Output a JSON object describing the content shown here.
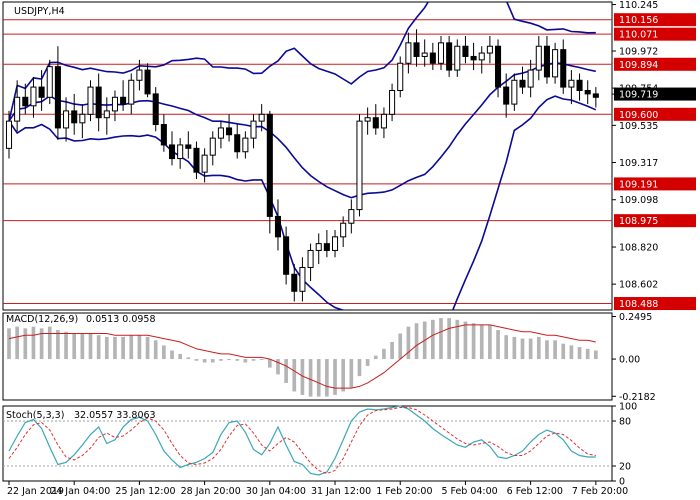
{
  "chart_data": {
    "type": "candlestick",
    "symbol_label": "USDJPY,H4",
    "colors": {
      "level_line": "#c81e1e",
      "level_tag": "#d40000",
      "bands": "#0a0a96",
      "macd_hist": "#b4b4b4",
      "macd_signal": "#c81e1e",
      "stoch_main": "#3aa8b8",
      "stoch_signal": "#e03030",
      "current_tag": "#000000"
    },
    "price_axis": {
      "range": [
        108.45,
        110.26
      ],
      "ticks": [
        "110.245",
        "109.972",
        "109.754",
        "109.535",
        "109.317",
        "109.098",
        "108.820",
        "108.602"
      ],
      "current_price": "109.719"
    },
    "levels": [
      "110.156",
      "110.071",
      "109.894",
      "109.600",
      "109.191",
      "108.975",
      "108.488"
    ],
    "x_axis": {
      "labels": [
        "22 Jan 2019",
        "24 Jan 04:00",
        "25 Jan 12:00",
        "28 Jan 20:00",
        "30 Jan 04:00",
        "31 Jan 12:00",
        "1 Feb 20:00",
        "5 Feb 04:00",
        "6 Feb 12:00",
        "7 Feb 20:00"
      ],
      "label_bar_index": [
        0,
        8,
        16,
        24,
        32,
        40,
        48,
        56,
        64,
        72
      ]
    },
    "candles": [
      {
        "o": 109.4,
        "h": 109.62,
        "l": 109.34,
        "c": 109.56
      },
      {
        "o": 109.56,
        "h": 109.8,
        "l": 109.5,
        "c": 109.7
      },
      {
        "o": 109.7,
        "h": 109.78,
        "l": 109.6,
        "c": 109.65
      },
      {
        "o": 109.65,
        "h": 109.82,
        "l": 109.58,
        "c": 109.76
      },
      {
        "o": 109.76,
        "h": 109.86,
        "l": 109.62,
        "c": 109.7
      },
      {
        "o": 109.7,
        "h": 109.92,
        "l": 109.66,
        "c": 109.88
      },
      {
        "o": 109.88,
        "h": 110.0,
        "l": 109.45,
        "c": 109.52
      },
      {
        "o": 109.52,
        "h": 109.7,
        "l": 109.44,
        "c": 109.62
      },
      {
        "o": 109.62,
        "h": 109.72,
        "l": 109.48,
        "c": 109.55
      },
      {
        "o": 109.55,
        "h": 109.66,
        "l": 109.46,
        "c": 109.6
      },
      {
        "o": 109.6,
        "h": 109.8,
        "l": 109.56,
        "c": 109.76
      },
      {
        "o": 109.76,
        "h": 109.84,
        "l": 109.5,
        "c": 109.58
      },
      {
        "o": 109.58,
        "h": 109.7,
        "l": 109.48,
        "c": 109.62
      },
      {
        "o": 109.62,
        "h": 109.74,
        "l": 109.56,
        "c": 109.7
      },
      {
        "o": 109.7,
        "h": 109.8,
        "l": 109.62,
        "c": 109.66
      },
      {
        "o": 109.66,
        "h": 109.84,
        "l": 109.6,
        "c": 109.8
      },
      {
        "o": 109.8,
        "h": 109.92,
        "l": 109.74,
        "c": 109.86
      },
      {
        "o": 109.86,
        "h": 109.9,
        "l": 109.7,
        "c": 109.72
      },
      {
        "o": 109.72,
        "h": 109.76,
        "l": 109.5,
        "c": 109.54
      },
      {
        "o": 109.54,
        "h": 109.6,
        "l": 109.38,
        "c": 109.42
      },
      {
        "o": 109.42,
        "h": 109.5,
        "l": 109.3,
        "c": 109.34
      },
      {
        "o": 109.34,
        "h": 109.46,
        "l": 109.28,
        "c": 109.42
      },
      {
        "o": 109.42,
        "h": 109.5,
        "l": 109.34,
        "c": 109.4
      },
      {
        "o": 109.4,
        "h": 109.44,
        "l": 109.22,
        "c": 109.26
      },
      {
        "o": 109.26,
        "h": 109.4,
        "l": 109.2,
        "c": 109.36
      },
      {
        "o": 109.36,
        "h": 109.5,
        "l": 109.3,
        "c": 109.46
      },
      {
        "o": 109.46,
        "h": 109.56,
        "l": 109.4,
        "c": 109.52
      },
      {
        "o": 109.52,
        "h": 109.6,
        "l": 109.44,
        "c": 109.48
      },
      {
        "o": 109.48,
        "h": 109.54,
        "l": 109.34,
        "c": 109.38
      },
      {
        "o": 109.38,
        "h": 109.5,
        "l": 109.34,
        "c": 109.46
      },
      {
        "o": 109.46,
        "h": 109.6,
        "l": 109.4,
        "c": 109.56
      },
      {
        "o": 109.56,
        "h": 109.66,
        "l": 109.5,
        "c": 109.6
      },
      {
        "o": 109.6,
        "h": 109.62,
        "l": 108.9,
        "c": 109.0
      },
      {
        "o": 109.0,
        "h": 109.1,
        "l": 108.8,
        "c": 108.88
      },
      {
        "o": 108.88,
        "h": 108.94,
        "l": 108.6,
        "c": 108.66
      },
      {
        "o": 108.66,
        "h": 108.72,
        "l": 108.5,
        "c": 108.56
      },
      {
        "o": 108.56,
        "h": 108.76,
        "l": 108.5,
        "c": 108.7
      },
      {
        "o": 108.7,
        "h": 108.84,
        "l": 108.62,
        "c": 108.8
      },
      {
        "o": 108.8,
        "h": 108.9,
        "l": 108.72,
        "c": 108.84
      },
      {
        "o": 108.84,
        "h": 108.92,
        "l": 108.76,
        "c": 108.8
      },
      {
        "o": 108.8,
        "h": 108.92,
        "l": 108.76,
        "c": 108.88
      },
      {
        "o": 108.88,
        "h": 109.0,
        "l": 108.82,
        "c": 108.96
      },
      {
        "o": 108.96,
        "h": 109.1,
        "l": 108.9,
        "c": 109.04
      },
      {
        "o": 109.04,
        "h": 109.6,
        "l": 109.0,
        "c": 109.56
      },
      {
        "o": 109.56,
        "h": 109.64,
        "l": 109.48,
        "c": 109.58
      },
      {
        "o": 109.58,
        "h": 109.66,
        "l": 109.48,
        "c": 109.52
      },
      {
        "o": 109.52,
        "h": 109.64,
        "l": 109.46,
        "c": 109.6
      },
      {
        "o": 109.6,
        "h": 109.78,
        "l": 109.56,
        "c": 109.74
      },
      {
        "o": 109.74,
        "h": 109.94,
        "l": 109.7,
        "c": 109.9
      },
      {
        "o": 109.9,
        "h": 110.08,
        "l": 109.84,
        "c": 110.02
      },
      {
        "o": 110.02,
        "h": 110.1,
        "l": 109.88,
        "c": 109.94
      },
      {
        "o": 109.94,
        "h": 110.04,
        "l": 109.88,
        "c": 109.96
      },
      {
        "o": 109.96,
        "h": 110.02,
        "l": 109.86,
        "c": 109.9
      },
      {
        "o": 109.9,
        "h": 110.06,
        "l": 109.86,
        "c": 110.02
      },
      {
        "o": 110.02,
        "h": 110.06,
        "l": 109.82,
        "c": 109.86
      },
      {
        "o": 109.86,
        "h": 110.04,
        "l": 109.82,
        "c": 110.0
      },
      {
        "o": 110.0,
        "h": 110.06,
        "l": 109.9,
        "c": 109.94
      },
      {
        "o": 109.94,
        "h": 110.02,
        "l": 109.86,
        "c": 109.92
      },
      {
        "o": 109.92,
        "h": 110.0,
        "l": 109.84,
        "c": 109.96
      },
      {
        "o": 109.96,
        "h": 110.06,
        "l": 109.9,
        "c": 110.0
      },
      {
        "o": 110.0,
        "h": 110.04,
        "l": 109.7,
        "c": 109.76
      },
      {
        "o": 109.76,
        "h": 109.84,
        "l": 109.58,
        "c": 109.66
      },
      {
        "o": 109.66,
        "h": 109.84,
        "l": 109.62,
        "c": 109.8
      },
      {
        "o": 109.8,
        "h": 109.88,
        "l": 109.72,
        "c": 109.76
      },
      {
        "o": 109.76,
        "h": 109.92,
        "l": 109.7,
        "c": 109.86
      },
      {
        "o": 109.86,
        "h": 110.06,
        "l": 109.8,
        "c": 110.0
      },
      {
        "o": 110.0,
        "h": 110.06,
        "l": 109.78,
        "c": 109.82
      },
      {
        "o": 109.82,
        "h": 110.02,
        "l": 109.78,
        "c": 109.98
      },
      {
        "o": 109.98,
        "h": 110.04,
        "l": 109.72,
        "c": 109.76
      },
      {
        "o": 109.76,
        "h": 109.86,
        "l": 109.66,
        "c": 109.8
      },
      {
        "o": 109.8,
        "h": 109.84,
        "l": 109.68,
        "c": 109.74
      },
      {
        "o": 109.74,
        "h": 109.8,
        "l": 109.66,
        "c": 109.72
      },
      {
        "o": 109.72,
        "h": 109.76,
        "l": 109.64,
        "c": 109.7
      }
    ],
    "macd": {
      "label": "MACD(12,26,9)",
      "values": [
        "0.0513",
        "0.0958"
      ],
      "axis_range": [
        -0.24,
        0.27
      ],
      "ticks": [
        "0.2495",
        "0.00",
        "-0.2182"
      ],
      "histogram": [
        0.18,
        0.19,
        0.18,
        0.19,
        0.18,
        0.19,
        0.17,
        0.16,
        0.15,
        0.15,
        0.15,
        0.14,
        0.13,
        0.13,
        0.13,
        0.14,
        0.14,
        0.13,
        0.11,
        0.08,
        0.05,
        0.03,
        0.01,
        -0.01,
        -0.02,
        -0.02,
        -0.01,
        0.0,
        -0.01,
        -0.02,
        -0.01,
        0.0,
        -0.05,
        -0.09,
        -0.14,
        -0.19,
        -0.21,
        -0.22,
        -0.22,
        -0.22,
        -0.21,
        -0.19,
        -0.17,
        -0.1,
        -0.04,
        0.02,
        0.06,
        0.1,
        0.15,
        0.19,
        0.21,
        0.22,
        0.23,
        0.24,
        0.24,
        0.23,
        0.22,
        0.21,
        0.2,
        0.2,
        0.17,
        0.14,
        0.13,
        0.12,
        0.12,
        0.13,
        0.11,
        0.11,
        0.09,
        0.08,
        0.07,
        0.06,
        0.05
      ],
      "signal": [
        0.12,
        0.13,
        0.14,
        0.14,
        0.15,
        0.15,
        0.15,
        0.15,
        0.15,
        0.15,
        0.15,
        0.15,
        0.15,
        0.14,
        0.14,
        0.14,
        0.14,
        0.14,
        0.13,
        0.12,
        0.11,
        0.1,
        0.08,
        0.06,
        0.05,
        0.04,
        0.03,
        0.03,
        0.02,
        0.01,
        0.01,
        0.01,
        0.0,
        -0.02,
        -0.04,
        -0.07,
        -0.1,
        -0.12,
        -0.14,
        -0.16,
        -0.17,
        -0.17,
        -0.17,
        -0.16,
        -0.14,
        -0.11,
        -0.08,
        -0.04,
        0.0,
        0.04,
        0.08,
        0.11,
        0.14,
        0.16,
        0.18,
        0.19,
        0.2,
        0.2,
        0.2,
        0.2,
        0.19,
        0.18,
        0.17,
        0.16,
        0.16,
        0.15,
        0.14,
        0.14,
        0.13,
        0.12,
        0.11,
        0.11,
        0.1
      ]
    },
    "stoch": {
      "label": "Stoch(5,3,3)",
      "values": [
        "32.0557",
        "33.8063"
      ],
      "axis_range": [
        0,
        100
      ],
      "ticks": [
        "100",
        "80",
        "20",
        "0"
      ],
      "levels": [
        80,
        20
      ],
      "main": [
        40,
        60,
        78,
        82,
        70,
        45,
        22,
        25,
        35,
        48,
        62,
        72,
        50,
        55,
        72,
        82,
        85,
        80,
        62,
        40,
        28,
        18,
        22,
        25,
        30,
        38,
        62,
        78,
        80,
        65,
        42,
        35,
        50,
        72,
        48,
        26,
        22,
        10,
        8,
        12,
        30,
        55,
        80,
        92,
        96,
        95,
        96,
        98,
        100,
        96,
        88,
        80,
        70,
        62,
        55,
        48,
        45,
        52,
        55,
        46,
        32,
        30,
        34,
        40,
        52,
        62,
        68,
        64,
        55,
        40,
        34,
        32,
        32
      ],
      "signal": [
        30,
        45,
        62,
        75,
        78,
        68,
        48,
        32,
        28,
        34,
        44,
        58,
        64,
        58,
        60,
        68,
        78,
        84,
        80,
        68,
        50,
        34,
        24,
        22,
        24,
        30,
        42,
        60,
        74,
        76,
        64,
        48,
        40,
        50,
        58,
        52,
        38,
        24,
        14,
        10,
        14,
        30,
        52,
        74,
        88,
        94,
        95,
        96,
        98,
        98,
        95,
        88,
        80,
        72,
        64,
        56,
        50,
        48,
        50,
        52,
        46,
        38,
        34,
        34,
        40,
        50,
        60,
        64,
        62,
        54,
        44,
        36,
        34
      ]
    }
  }
}
